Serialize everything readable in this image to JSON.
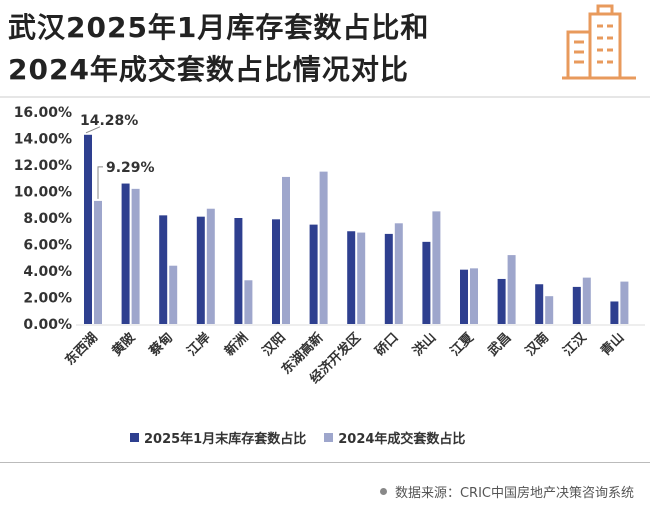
{
  "title_line1": "武汉2025年1月库存套数占比和",
  "title_line2": "2024年成交套数占比情况对比",
  "icon": "building-icon",
  "source": "数据来源：CRIC中国房地产决策咨询系统",
  "colors": {
    "inventory": "#2e3f8f",
    "deals": "#9ea6cc",
    "icon": "#e89a5c"
  },
  "chart_data": {
    "type": "bar",
    "categories": [
      "东西湖",
      "黄陂",
      "蔡甸",
      "江岸",
      "新洲",
      "汉阳",
      "东湖高新",
      "经济开发区",
      "硚口",
      "洪山",
      "江夏",
      "武昌",
      "汉南",
      "江汉",
      "青山"
    ],
    "series": [
      {
        "name": "2025年1月末库存套数占比",
        "values": [
          14.28,
          10.6,
          8.2,
          8.1,
          8.0,
          7.9,
          7.5,
          7.0,
          6.8,
          6.2,
          4.1,
          3.4,
          3.0,
          2.8,
          1.7
        ]
      },
      {
        "name": "2024年成交套数占比",
        "values": [
          9.29,
          10.2,
          4.4,
          8.7,
          3.3,
          11.1,
          11.5,
          6.9,
          7.6,
          8.5,
          4.2,
          5.2,
          2.1,
          3.5,
          3.2
        ]
      }
    ],
    "yticks": [
      "0.00%",
      "2.00%",
      "4.00%",
      "6.00%",
      "8.00%",
      "10.00%",
      "12.00%",
      "14.00%",
      "16.00%"
    ],
    "ylim": [
      0,
      16
    ],
    "annotations": [
      "14.28%",
      "9.29%"
    ],
    "legend": "bottom",
    "grid": false
  }
}
